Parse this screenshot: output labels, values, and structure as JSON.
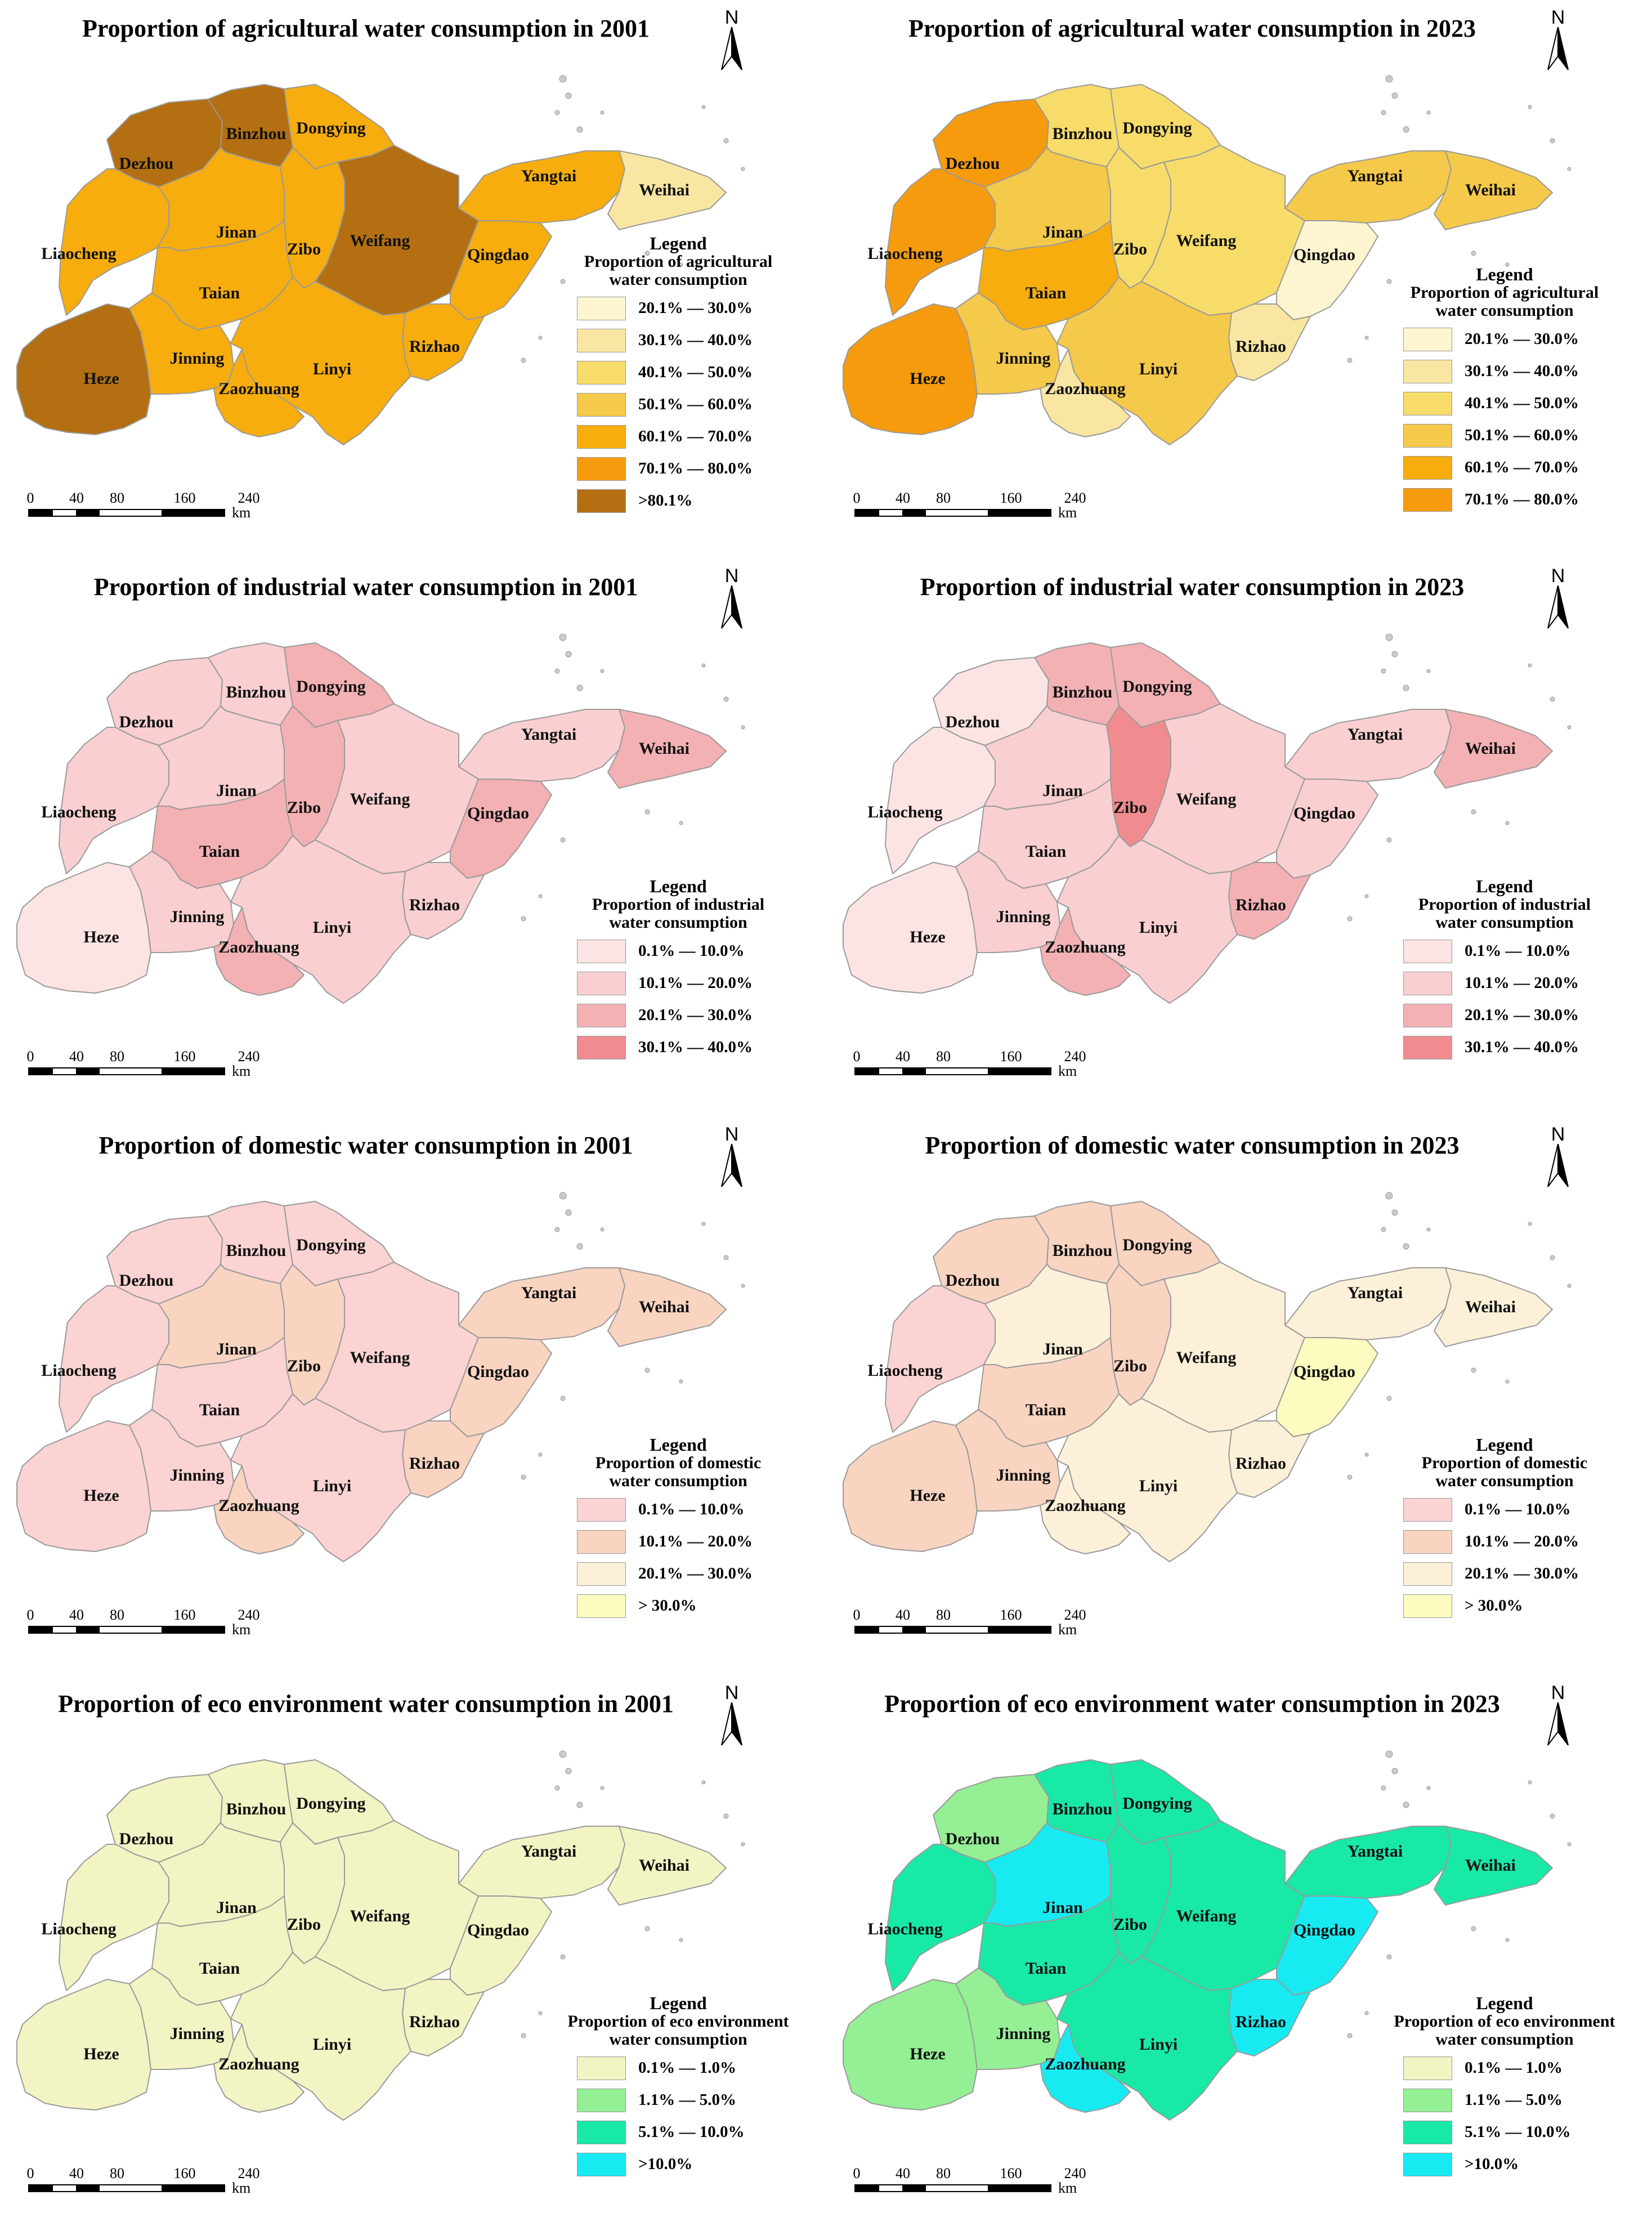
{
  "palettes": {
    "agri": [
      "#fdf5cf",
      "#f9e6a2",
      "#f7dc6a",
      "#f5c949",
      "#f7ad0e",
      "#f59b0d",
      "#b36f12"
    ],
    "ind": [
      "#fbe4e3",
      "#f9cfd1",
      "#f3b1b4",
      "#f08c8f"
    ],
    "dom": [
      "#fbd3d2",
      "#f9d4c1",
      "#fdf0d8",
      "#fcfcc0"
    ],
    "eco": [
      "#f2f5c3",
      "#94ef95",
      "#18e9a6",
      "#17ebf1"
    ]
  },
  "cities": [
    "Dezhou",
    "Binzhou",
    "Dongying",
    "Yangtai",
    "Weihai",
    "Liaocheng",
    "Jinan",
    "Zibo",
    "Weifang",
    "Qingdao",
    "Taian",
    "Rizhao",
    "Heze",
    "Jinning",
    "Linyi",
    "Zaozhuang"
  ],
  "panels": [
    {
      "title": "Proportion of agricultural water consumption in 2001",
      "legend": {
        "title": "Legend",
        "subtitle": [
          "Proportion of agricultural",
          "water consumption"
        ],
        "palette": "agri",
        "items": [
          "20.1% — 30.0%",
          "30.1% — 40.0%",
          "40.1% — 50.0%",
          "50.1% — 60.0%",
          "60.1% — 70.0%",
          "70.1% — 80.0%",
          ">80.1%"
        ]
      },
      "fills": {
        "Dezhou": 6,
        "Binzhou": 6,
        "Dongying": 4,
        "Yangtai": 4,
        "Weihai": 1,
        "Liaocheng": 4,
        "Jinan": 4,
        "Zibo": 4,
        "Weifang": 6,
        "Qingdao": 4,
        "Taian": 4,
        "Rizhao": 4,
        "Heze": 6,
        "Jinning": 4,
        "Linyi": 4,
        "Zaozhuang": 4
      }
    },
    {
      "title": "Proportion of agricultural water consumption in 2023",
      "legend": {
        "title": "Legend",
        "subtitle": [
          "Proportion of agricultural",
          "water consumption"
        ],
        "palette": "agri",
        "items": [
          "20.1% — 30.0%",
          "30.1% — 40.0%",
          "40.1% — 50.0%",
          "50.1% — 60.0%",
          "60.1% — 70.0%",
          "70.1% — 80.0%"
        ]
      },
      "fills": {
        "Dezhou": 5,
        "Binzhou": 2,
        "Dongying": 2,
        "Yangtai": 3,
        "Weihai": 3,
        "Liaocheng": 5,
        "Jinan": 3,
        "Zibo": 2,
        "Weifang": 2,
        "Qingdao": 0,
        "Taian": 4,
        "Rizhao": 1,
        "Heze": 5,
        "Jinning": 3,
        "Linyi": 3,
        "Zaozhuang": 1
      }
    },
    {
      "title": "Proportion of industrial water consumption in 2001",
      "legend": {
        "title": "Legend",
        "subtitle": [
          "Proportion of industrial",
          "water consumption"
        ],
        "palette": "ind",
        "items": [
          "0.1% — 10.0%",
          "10.1% — 20.0%",
          "20.1% — 30.0%",
          "30.1% — 40.0%"
        ]
      },
      "fills": {
        "Dezhou": 1,
        "Binzhou": 1,
        "Dongying": 2,
        "Yangtai": 1,
        "Weihai": 2,
        "Liaocheng": 1,
        "Jinan": 1,
        "Zibo": 2,
        "Weifang": 1,
        "Qingdao": 2,
        "Taian": 2,
        "Rizhao": 1,
        "Heze": 0,
        "Jinning": 1,
        "Linyi": 1,
        "Zaozhuang": 2
      }
    },
    {
      "title": "Proportion of industrial water consumption in 2023",
      "legend": {
        "title": "Legend",
        "subtitle": [
          "Proportion of industrial",
          "water consumption"
        ],
        "palette": "ind",
        "items": [
          "0.1% — 10.0%",
          "10.1% — 20.0%",
          "20.1% — 30.0%",
          "30.1% — 40.0%"
        ]
      },
      "fills": {
        "Dezhou": 0,
        "Binzhou": 2,
        "Dongying": 2,
        "Yangtai": 1,
        "Weihai": 2,
        "Liaocheng": 0,
        "Jinan": 1,
        "Zibo": 3,
        "Weifang": 1,
        "Qingdao": 1,
        "Taian": 1,
        "Rizhao": 2,
        "Heze": 0,
        "Jinning": 1,
        "Linyi": 1,
        "Zaozhuang": 2
      }
    },
    {
      "title": "Proportion of domestic water consumption in 2001",
      "legend": {
        "title": "Legend",
        "subtitle": [
          "Proportion of domestic",
          "water consumption"
        ],
        "palette": "dom",
        "items": [
          "0.1% — 10.0%",
          "10.1% — 20.0%",
          "20.1% — 30.0%",
          "> 30.0%"
        ]
      },
      "fills": {
        "Dezhou": 0,
        "Binzhou": 0,
        "Dongying": 0,
        "Yangtai": 1,
        "Weihai": 1,
        "Liaocheng": 0,
        "Jinan": 1,
        "Zibo": 1,
        "Weifang": 0,
        "Qingdao": 1,
        "Taian": 0,
        "Rizhao": 1,
        "Heze": 0,
        "Jinning": 0,
        "Linyi": 0,
        "Zaozhuang": 1
      }
    },
    {
      "title": "Proportion of domestic water consumption in 2023",
      "legend": {
        "title": "Legend",
        "subtitle": [
          "Proportion of domestic",
          "water consumption"
        ],
        "palette": "dom",
        "items": [
          "0.1% — 10.0%",
          "10.1% — 20.0%",
          "20.1% — 30.0%",
          "> 30.0%"
        ]
      },
      "fills": {
        "Dezhou": 1,
        "Binzhou": 1,
        "Dongying": 1,
        "Yangtai": 2,
        "Weihai": 2,
        "Liaocheng": 0,
        "Jinan": 2,
        "Zibo": 1,
        "Weifang": 2,
        "Qingdao": 3,
        "Taian": 1,
        "Rizhao": 2,
        "Heze": 1,
        "Jinning": 1,
        "Linyi": 2,
        "Zaozhuang": 2
      }
    },
    {
      "title": "Proportion of eco environment water consumption  in 2001",
      "legend": {
        "title": "Legend",
        "subtitle": [
          "Proportion of eco environment",
          "water consumption"
        ],
        "palette": "eco",
        "items": [
          "0.1% — 1.0%",
          "1.1% — 5.0%",
          "5.1% — 10.0%",
          ">10.0%"
        ]
      },
      "fills": {
        "Dezhou": 0,
        "Binzhou": 0,
        "Dongying": 0,
        "Yangtai": 0,
        "Weihai": 0,
        "Liaocheng": 0,
        "Jinan": 0,
        "Zibo": 0,
        "Weifang": 0,
        "Qingdao": 0,
        "Taian": 0,
        "Rizhao": 0,
        "Heze": 0,
        "Jinning": 0,
        "Linyi": 0,
        "Zaozhuang": 0
      }
    },
    {
      "title": "Proportion of eco environment water consumption  in 2023",
      "legend": {
        "title": "Legend",
        "subtitle": [
          "Proportion of eco environment",
          "water consumption"
        ],
        "palette": "eco",
        "items": [
          "0.1% — 1.0%",
          "1.1% — 5.0%",
          "5.1% — 10.0%",
          ">10.0%"
        ]
      },
      "fills": {
        "Dezhou": 1,
        "Binzhou": 2,
        "Dongying": 2,
        "Yangtai": 2,
        "Weihai": 2,
        "Liaocheng": 2,
        "Jinan": 3,
        "Zibo": 2,
        "Weifang": 2,
        "Qingdao": 3,
        "Taian": 2,
        "Rizhao": 3,
        "Heze": 1,
        "Jinning": 1,
        "Linyi": 2,
        "Zaozhuang": 3
      }
    }
  ],
  "north_label": "N",
  "scale": {
    "ticks": [
      "0",
      "40",
      "80",
      "160",
      "240"
    ],
    "unit": "km"
  }
}
